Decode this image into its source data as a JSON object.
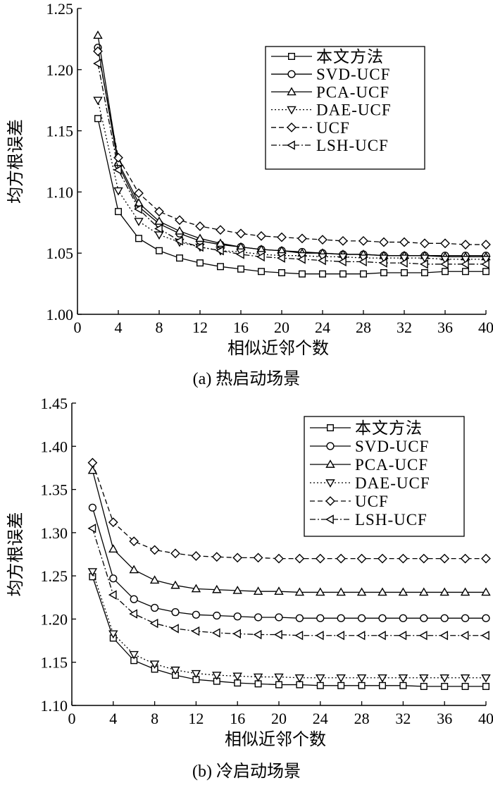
{
  "chart_data": [
    {
      "type": "line",
      "caption": "(a) 热启动场景",
      "xlabel": "相似近邻个数",
      "ylabel": "均方根误差",
      "xlim": [
        0,
        40
      ],
      "ylim": [
        1.0,
        1.25
      ],
      "x_ticks": [
        "0",
        "4",
        "8",
        "12",
        "16",
        "20",
        "24",
        "28",
        "32",
        "36",
        "40"
      ],
      "y_ticks": [
        "1.00",
        "1.05",
        "1.10",
        "1.15",
        "1.20",
        "1.25"
      ],
      "legend_position": "top-right",
      "x": [
        2,
        4,
        6,
        8,
        10,
        12,
        14,
        16,
        18,
        20,
        22,
        24,
        26,
        28,
        30,
        32,
        34,
        36,
        38,
        40
      ],
      "series": [
        {
          "name": "本文方法",
          "marker": "square",
          "dash": "solid",
          "values": [
            1.16,
            1.084,
            1.062,
            1.052,
            1.046,
            1.042,
            1.039,
            1.037,
            1.035,
            1.034,
            1.033,
            1.033,
            1.033,
            1.033,
            1.034,
            1.034,
            1.034,
            1.035,
            1.035,
            1.035
          ]
        },
        {
          "name": "SVD-UCF",
          "marker": "circle",
          "dash": "solid",
          "values": [
            1.218,
            1.122,
            1.088,
            1.074,
            1.066,
            1.06,
            1.057,
            1.055,
            1.053,
            1.052,
            1.051,
            1.05,
            1.049,
            1.049,
            1.048,
            1.048,
            1.048,
            1.048,
            1.048,
            1.048
          ]
        },
        {
          "name": "PCA-UCF",
          "marker": "triangle-up",
          "dash": "solid",
          "values": [
            1.228,
            1.124,
            1.091,
            1.076,
            1.068,
            1.062,
            1.058,
            1.055,
            1.053,
            1.052,
            1.05,
            1.05,
            1.049,
            1.049,
            1.048,
            1.048,
            1.048,
            1.047,
            1.047,
            1.047
          ]
        },
        {
          "name": "DAE-UCF",
          "marker": "triangle-down",
          "dash": "dotted",
          "values": [
            1.175,
            1.101,
            1.076,
            1.065,
            1.059,
            1.055,
            1.052,
            1.051,
            1.049,
            1.048,
            1.048,
            1.047,
            1.047,
            1.046,
            1.046,
            1.046,
            1.046,
            1.045,
            1.045,
            1.045
          ]
        },
        {
          "name": "UCF",
          "marker": "diamond",
          "dash": "dashed",
          "values": [
            1.215,
            1.128,
            1.099,
            1.084,
            1.077,
            1.072,
            1.069,
            1.066,
            1.064,
            1.063,
            1.062,
            1.061,
            1.06,
            1.06,
            1.059,
            1.059,
            1.058,
            1.058,
            1.057,
            1.057
          ]
        },
        {
          "name": "LSH-UCF",
          "marker": "triangle-left",
          "dash": "dashdot",
          "values": [
            1.205,
            1.118,
            1.086,
            1.07,
            1.06,
            1.055,
            1.052,
            1.049,
            1.047,
            1.046,
            1.045,
            1.044,
            1.043,
            1.043,
            1.042,
            1.042,
            1.041,
            1.041,
            1.041,
            1.041
          ]
        }
      ]
    },
    {
      "type": "line",
      "caption": "(b) 冷启动场景",
      "xlabel": "相似近邻个数",
      "ylabel": "均方根误差",
      "xlim": [
        0,
        40
      ],
      "ylim": [
        1.1,
        1.45
      ],
      "x_ticks": [
        "0",
        "4",
        "8",
        "12",
        "16",
        "20",
        "24",
        "28",
        "32",
        "36",
        "40"
      ],
      "y_ticks": [
        "1.10",
        "1.15",
        "1.20",
        "1.25",
        "1.30",
        "1.35",
        "1.40",
        "1.45"
      ],
      "legend_position": "top-right",
      "x": [
        2,
        4,
        6,
        8,
        10,
        12,
        14,
        16,
        18,
        20,
        22,
        24,
        26,
        28,
        30,
        32,
        34,
        36,
        38,
        40
      ],
      "series": [
        {
          "name": "本文方法",
          "marker": "square",
          "dash": "solid",
          "values": [
            1.249,
            1.178,
            1.152,
            1.142,
            1.135,
            1.13,
            1.128,
            1.126,
            1.125,
            1.124,
            1.124,
            1.123,
            1.123,
            1.123,
            1.123,
            1.123,
            1.122,
            1.122,
            1.122,
            1.122
          ]
        },
        {
          "name": "SVD-UCF",
          "marker": "circle",
          "dash": "solid",
          "values": [
            1.329,
            1.247,
            1.223,
            1.213,
            1.208,
            1.205,
            1.204,
            1.203,
            1.202,
            1.202,
            1.201,
            1.201,
            1.201,
            1.201,
            1.201,
            1.201,
            1.201,
            1.201,
            1.201,
            1.201
          ]
        },
        {
          "name": "PCA-UCF",
          "marker": "triangle-up",
          "dash": "solid",
          "values": [
            1.372,
            1.281,
            1.257,
            1.245,
            1.239,
            1.235,
            1.234,
            1.233,
            1.232,
            1.232,
            1.231,
            1.231,
            1.231,
            1.231,
            1.231,
            1.231,
            1.231,
            1.231,
            1.231,
            1.231
          ]
        },
        {
          "name": "DAE-UCF",
          "marker": "triangle-down",
          "dash": "dotted",
          "values": [
            1.255,
            1.183,
            1.159,
            1.148,
            1.141,
            1.137,
            1.135,
            1.134,
            1.133,
            1.133,
            1.132,
            1.132,
            1.132,
            1.132,
            1.132,
            1.132,
            1.132,
            1.132,
            1.132,
            1.132
          ]
        },
        {
          "name": "UCF",
          "marker": "diamond",
          "dash": "dashed",
          "values": [
            1.381,
            1.312,
            1.29,
            1.28,
            1.276,
            1.273,
            1.272,
            1.271,
            1.271,
            1.27,
            1.27,
            1.27,
            1.27,
            1.27,
            1.27,
            1.27,
            1.27,
            1.27,
            1.27,
            1.27
          ]
        },
        {
          "name": "LSH-UCF",
          "marker": "triangle-left",
          "dash": "dashdot",
          "values": [
            1.305,
            1.228,
            1.206,
            1.195,
            1.189,
            1.186,
            1.184,
            1.183,
            1.182,
            1.182,
            1.181,
            1.181,
            1.181,
            1.181,
            1.181,
            1.181,
            1.181,
            1.181,
            1.181,
            1.181
          ]
        }
      ]
    }
  ]
}
